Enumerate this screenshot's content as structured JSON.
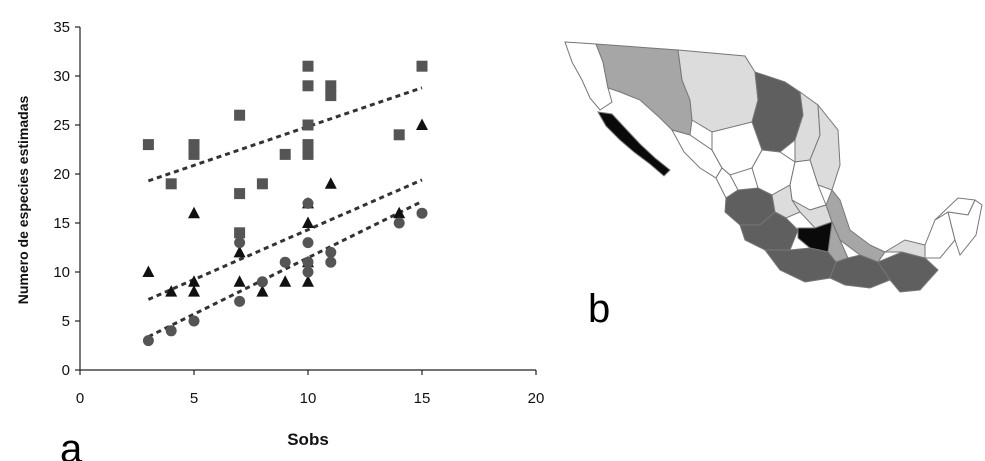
{
  "chart_data": {
    "type": "scatter",
    "xlabel": "Sobs",
    "ylabel": "Numero de especies estimadas",
    "xlim": [
      0,
      20
    ],
    "ylim": [
      0,
      35
    ],
    "xticks": [
      0,
      5,
      10,
      15,
      20
    ],
    "yticks": [
      0,
      5,
      10,
      15,
      20,
      25,
      30,
      35
    ],
    "grid": false,
    "series": [
      {
        "marker": "square",
        "color": "#555555",
        "points": [
          [
            3,
            23
          ],
          [
            4,
            19
          ],
          [
            5,
            22
          ],
          [
            5,
            23
          ],
          [
            7,
            14
          ],
          [
            7,
            18
          ],
          [
            7,
            26
          ],
          [
            8,
            19
          ],
          [
            9,
            22
          ],
          [
            10,
            22
          ],
          [
            10,
            23
          ],
          [
            10,
            25
          ],
          [
            10,
            29
          ],
          [
            10,
            31
          ],
          [
            11,
            28
          ],
          [
            11,
            29
          ],
          [
            14,
            24
          ],
          [
            15,
            31
          ]
        ],
        "trend": [
          [
            3,
            19.3
          ],
          [
            15,
            28.8
          ]
        ]
      },
      {
        "marker": "triangle",
        "color": "#111111",
        "points": [
          [
            3,
            10
          ],
          [
            4,
            8
          ],
          [
            5,
            8
          ],
          [
            5,
            9
          ],
          [
            5,
            16
          ],
          [
            7,
            9
          ],
          [
            7,
            12
          ],
          [
            8,
            8
          ],
          [
            9,
            9
          ],
          [
            10,
            9
          ],
          [
            10,
            11
          ],
          [
            10,
            15
          ],
          [
            10,
            17
          ],
          [
            11,
            19
          ],
          [
            14,
            16
          ],
          [
            15,
            25
          ]
        ],
        "trend": [
          [
            3,
            7.2
          ],
          [
            15,
            19.4
          ]
        ]
      },
      {
        "marker": "circle",
        "color": "#555555",
        "points": [
          [
            3,
            3
          ],
          [
            4,
            4
          ],
          [
            5,
            5
          ],
          [
            7,
            7
          ],
          [
            7,
            13
          ],
          [
            8,
            9
          ],
          [
            9,
            11
          ],
          [
            10,
            10
          ],
          [
            10,
            11
          ],
          [
            10,
            13
          ],
          [
            10,
            17
          ],
          [
            11,
            11
          ],
          [
            11,
            12
          ],
          [
            14,
            15
          ],
          [
            15,
            16
          ]
        ],
        "trend": [
          [
            3,
            3.4
          ],
          [
            15,
            17.2
          ]
        ]
      }
    ]
  },
  "panel_a_label": "a",
  "panel_b_label": "b",
  "map": {
    "colors": {
      "black": "#0a0a0a",
      "dark": "#5f5f5f",
      "medium": "#a6a6a6",
      "light": "#dcdcdc",
      "white": "#ffffff"
    }
  }
}
